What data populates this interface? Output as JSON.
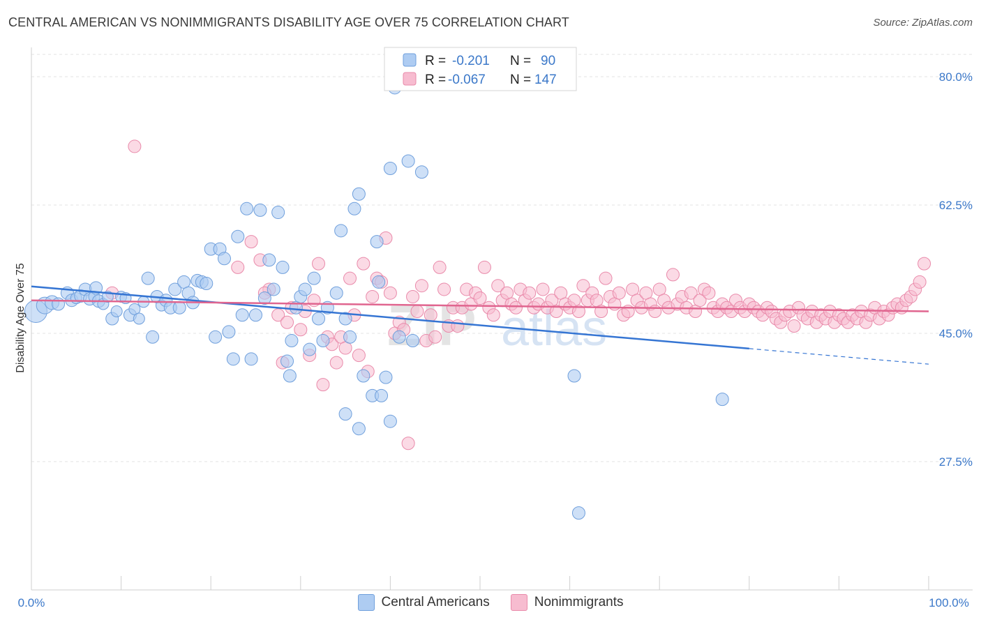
{
  "header": {
    "title": "CENTRAL AMERICAN VS NONIMMIGRANTS DISABILITY AGE OVER 75 CORRELATION CHART",
    "source": "Source: ZipAtlas.com"
  },
  "legend": {
    "r_label": "R =",
    "n_label": "N =",
    "series": [
      {
        "r": "-0.201",
        "n": "90"
      },
      {
        "r": "-0.067",
        "n": "147"
      }
    ]
  },
  "watermark": {
    "zip": "ZIP",
    "atlas": "atlas"
  },
  "colors": {
    "blue_fill": "#aeccf2",
    "blue_stroke": "#6f9fdc",
    "blue_line": "#3575d3",
    "pink_fill": "#f7bcd0",
    "pink_stroke": "#e98aaa",
    "pink_line": "#e0658f",
    "tick_text": "#3b78c9"
  },
  "chart_data": {
    "type": "scatter",
    "title": "CENTRAL AMERICAN VS NONIMMIGRANTS DISABILITY AGE OVER 75 CORRELATION CHART",
    "xlabel": "",
    "ylabel": "Disability Age Over 75",
    "xlim": [
      0,
      100
    ],
    "ylim": [
      10,
      84
    ],
    "x_tick_labels": [
      "0.0%",
      "100.0%"
    ],
    "y_ticks": [
      27.5,
      45.0,
      62.5,
      80.0
    ],
    "y_tick_labels": [
      "27.5%",
      "45.0%",
      "62.5%",
      "80.0%"
    ],
    "grid": "horizontal dashed",
    "legend_position": "top-center",
    "series": [
      {
        "name": "Central Americans",
        "r": -0.201,
        "n": 90,
        "trend": {
          "x0": 0,
          "y0": 51.4,
          "x1": 100,
          "y1": 40.8,
          "solid_until": 80
        },
        "points": [
          [
            0.5,
            48.0,
            16
          ],
          [
            1.5,
            48.8,
            12
          ],
          [
            2.3,
            49.2,
            10
          ],
          [
            3.0,
            49.0,
            9
          ],
          [
            4.0,
            50.5,
            9
          ],
          [
            4.5,
            49.5,
            9
          ],
          [
            5.0,
            49.8,
            8
          ],
          [
            5.5,
            50.1,
            9
          ],
          [
            6.0,
            51.0,
            9
          ],
          [
            6.5,
            49.7,
            9
          ],
          [
            7.0,
            50.0,
            8
          ],
          [
            7.2,
            51.2,
            9
          ],
          [
            7.5,
            49.4,
            9
          ],
          [
            8.0,
            49.0,
            8
          ],
          [
            8.5,
            50.0,
            8
          ],
          [
            9.0,
            47.0,
            9
          ],
          [
            9.5,
            48.0,
            8
          ],
          [
            10.0,
            50.0,
            8
          ],
          [
            10.5,
            49.8,
            8
          ],
          [
            11.0,
            47.5,
            9
          ],
          [
            11.5,
            48.3,
            8
          ],
          [
            12.0,
            47.0,
            8
          ],
          [
            12.5,
            49.3,
            8
          ],
          [
            13.0,
            52.5,
            9
          ],
          [
            13.5,
            44.5,
            9
          ],
          [
            14.0,
            50.0,
            9
          ],
          [
            14.5,
            48.8,
            8
          ],
          [
            15.0,
            49.5,
            9
          ],
          [
            15.5,
            48.5,
            9
          ],
          [
            16.0,
            51.0,
            9
          ],
          [
            16.5,
            48.5,
            9
          ],
          [
            17.0,
            52.0,
            9
          ],
          [
            17.5,
            50.5,
            9
          ],
          [
            18.0,
            49.2,
            9
          ],
          [
            18.5,
            52.2,
            9
          ],
          [
            19.0,
            52.0,
            9
          ],
          [
            19.5,
            51.8,
            9
          ],
          [
            20.0,
            56.5,
            9
          ],
          [
            20.5,
            44.5,
            9
          ],
          [
            21.0,
            56.5,
            9
          ],
          [
            21.5,
            55.2,
            9
          ],
          [
            22.0,
            45.2,
            9
          ],
          [
            22.5,
            41.5,
            9
          ],
          [
            23.0,
            58.2,
            9
          ],
          [
            23.5,
            47.5,
            9
          ],
          [
            24.0,
            62.0,
            9
          ],
          [
            24.5,
            41.5,
            9
          ],
          [
            25.0,
            47.5,
            9
          ],
          [
            25.5,
            61.8,
            9
          ],
          [
            26.0,
            49.8,
            9
          ],
          [
            26.5,
            55.0,
            9
          ],
          [
            27.0,
            51.0,
            9
          ],
          [
            27.5,
            61.5,
            9
          ],
          [
            28.0,
            54.0,
            9
          ],
          [
            28.5,
            41.2,
            9
          ],
          [
            28.8,
            39.2,
            9
          ],
          [
            29.0,
            44.0,
            9
          ],
          [
            29.5,
            48.5,
            9
          ],
          [
            30.0,
            50.0,
            9
          ],
          [
            30.5,
            51.0,
            9
          ],
          [
            31.0,
            42.8,
            9
          ],
          [
            31.5,
            52.5,
            9
          ],
          [
            32.0,
            47.0,
            9
          ],
          [
            32.5,
            44.0,
            9
          ],
          [
            33.0,
            48.5,
            9
          ],
          [
            34.0,
            50.5,
            9
          ],
          [
            34.5,
            59.0,
            9
          ],
          [
            35.0,
            47.0,
            9
          ],
          [
            35.5,
            44.5,
            9
          ],
          [
            36.0,
            62.0,
            9
          ],
          [
            36.5,
            64.0,
            9
          ],
          [
            37.0,
            39.2,
            9
          ],
          [
            38.0,
            36.5,
            9
          ],
          [
            38.5,
            57.5,
            9
          ],
          [
            38.7,
            52.0,
            9
          ],
          [
            39.0,
            36.5,
            9
          ],
          [
            39.5,
            39.0,
            9
          ],
          [
            40.0,
            33.0,
            9
          ],
          [
            40.5,
            78.5,
            9
          ],
          [
            41.0,
            44.5,
            9
          ],
          [
            42.0,
            68.5,
            9
          ],
          [
            42.5,
            44.0,
            9
          ],
          [
            43.5,
            67.0,
            9
          ],
          [
            40.0,
            67.5,
            9
          ],
          [
            35.0,
            34.0,
            9
          ],
          [
            36.5,
            32.0,
            9
          ],
          [
            60.5,
            39.2,
            9
          ],
          [
            77.0,
            36.0,
            9
          ],
          [
            61.0,
            20.5,
            9
          ]
        ]
      },
      {
        "name": "Nonimmigrants",
        "r": -0.067,
        "n": 147,
        "trend": {
          "x0": 0,
          "y0": 49.5,
          "x1": 100,
          "y1": 48.0
        },
        "points": [
          [
            11.5,
            70.5
          ],
          [
            9.0,
            50.5
          ],
          [
            23.0,
            54.0
          ],
          [
            24.5,
            57.5
          ],
          [
            25.5,
            55.0
          ],
          [
            26.5,
            51.0
          ],
          [
            26.0,
            50.5
          ],
          [
            27.5,
            47.5
          ],
          [
            28.0,
            41.0
          ],
          [
            28.5,
            46.5
          ],
          [
            29.0,
            48.5
          ],
          [
            30.0,
            45.5
          ],
          [
            30.5,
            48.0
          ],
          [
            31.0,
            42.0
          ],
          [
            31.5,
            49.5
          ],
          [
            32.0,
            54.5
          ],
          [
            32.5,
            38.0
          ],
          [
            33.0,
            44.5
          ],
          [
            33.5,
            43.5
          ],
          [
            34.0,
            41.0
          ],
          [
            34.5,
            44.5
          ],
          [
            35.0,
            43.0
          ],
          [
            35.5,
            52.5
          ],
          [
            36.0,
            47.5
          ],
          [
            36.5,
            42.0
          ],
          [
            37.0,
            54.5
          ],
          [
            37.5,
            39.8
          ],
          [
            38.0,
            50.0
          ],
          [
            38.5,
            52.5
          ],
          [
            39.0,
            52.0
          ],
          [
            39.5,
            58.0
          ],
          [
            40.0,
            50.5
          ],
          [
            40.5,
            45.0
          ],
          [
            41.0,
            46.5
          ],
          [
            41.5,
            45.5
          ],
          [
            42.0,
            30.0
          ],
          [
            42.5,
            50.0
          ],
          [
            43.0,
            48.0
          ],
          [
            43.5,
            51.5
          ],
          [
            44.0,
            44.0
          ],
          [
            44.5,
            47.5
          ],
          [
            45.0,
            44.5
          ],
          [
            45.5,
            54.0
          ],
          [
            46.0,
            51.0
          ],
          [
            46.5,
            46.0
          ],
          [
            47.0,
            48.5
          ],
          [
            47.5,
            46.0
          ],
          [
            48.0,
            48.5
          ],
          [
            48.5,
            51.0
          ],
          [
            49.0,
            49.0
          ],
          [
            49.5,
            50.5
          ],
          [
            50.0,
            49.8
          ],
          [
            50.5,
            54.0
          ],
          [
            51.0,
            48.5
          ],
          [
            51.5,
            47.5
          ],
          [
            52.0,
            51.5
          ],
          [
            52.5,
            49.5
          ],
          [
            53.0,
            50.5
          ],
          [
            53.5,
            49.0
          ],
          [
            54.0,
            48.5
          ],
          [
            54.5,
            51.0
          ],
          [
            55.0,
            49.5
          ],
          [
            55.5,
            50.5
          ],
          [
            56.0,
            48.5
          ],
          [
            56.5,
            49.0
          ],
          [
            57.0,
            51.0
          ],
          [
            57.5,
            48.5
          ],
          [
            58.0,
            49.5
          ],
          [
            58.5,
            48.0
          ],
          [
            59.0,
            50.5
          ],
          [
            59.5,
            49.0
          ],
          [
            60.0,
            48.5
          ],
          [
            60.5,
            49.5
          ],
          [
            61.0,
            48.0
          ],
          [
            61.5,
            51.5
          ],
          [
            62.0,
            49.5
          ],
          [
            62.5,
            50.5
          ],
          [
            63.0,
            49.5
          ],
          [
            63.5,
            48.0
          ],
          [
            64.0,
            52.5
          ],
          [
            64.5,
            50.0
          ],
          [
            65.0,
            49.0
          ],
          [
            65.5,
            50.5
          ],
          [
            66.0,
            47.5
          ],
          [
            66.5,
            48.0
          ],
          [
            67.0,
            51.0
          ],
          [
            67.5,
            49.5
          ],
          [
            68.0,
            48.5
          ],
          [
            68.5,
            50.5
          ],
          [
            69.0,
            49.0
          ],
          [
            69.5,
            48.0
          ],
          [
            70.0,
            51.0
          ],
          [
            70.5,
            49.5
          ],
          [
            71.0,
            48.5
          ],
          [
            71.5,
            53.0
          ],
          [
            72.0,
            49.0
          ],
          [
            72.5,
            50.0
          ],
          [
            73.0,
            48.5
          ],
          [
            73.5,
            50.5
          ],
          [
            74.0,
            48.0
          ],
          [
            74.5,
            49.5
          ],
          [
            75.0,
            51.0
          ],
          [
            75.5,
            50.5
          ],
          [
            76.0,
            48.5
          ],
          [
            76.5,
            48.0
          ],
          [
            77.0,
            49.0
          ],
          [
            77.5,
            48.5
          ],
          [
            78.0,
            48.0
          ],
          [
            78.5,
            49.5
          ],
          [
            79.0,
            48.5
          ],
          [
            79.5,
            48.0
          ],
          [
            80.0,
            49.0
          ],
          [
            80.5,
            48.5
          ],
          [
            81.0,
            48.0
          ],
          [
            81.5,
            47.5
          ],
          [
            82.0,
            48.5
          ],
          [
            82.5,
            48.0
          ],
          [
            83.0,
            47.0
          ],
          [
            83.5,
            46.5
          ],
          [
            84.0,
            47.5
          ],
          [
            84.5,
            48.0
          ],
          [
            85.0,
            46.0
          ],
          [
            85.5,
            48.5
          ],
          [
            86.0,
            47.5
          ],
          [
            86.5,
            47.0
          ],
          [
            87.0,
            48.0
          ],
          [
            87.5,
            46.5
          ],
          [
            88.0,
            47.5
          ],
          [
            88.5,
            47.0
          ],
          [
            89.0,
            48.0
          ],
          [
            89.5,
            46.5
          ],
          [
            90.0,
            47.5
          ],
          [
            90.5,
            47.0
          ],
          [
            91.0,
            46.5
          ],
          [
            91.5,
            47.5
          ],
          [
            92.0,
            47.0
          ],
          [
            92.5,
            48.0
          ],
          [
            93.0,
            46.5
          ],
          [
            93.5,
            47.5
          ],
          [
            94.0,
            48.5
          ],
          [
            94.5,
            47.0
          ],
          [
            95.0,
            48.0
          ],
          [
            95.5,
            47.5
          ],
          [
            96.0,
            48.5
          ],
          [
            96.5,
            49.0
          ],
          [
            97.0,
            48.5
          ],
          [
            97.5,
            49.5
          ],
          [
            98.0,
            50.0
          ],
          [
            98.5,
            51.0
          ],
          [
            99.0,
            52.0
          ],
          [
            99.5,
            54.5
          ]
        ]
      }
    ]
  }
}
